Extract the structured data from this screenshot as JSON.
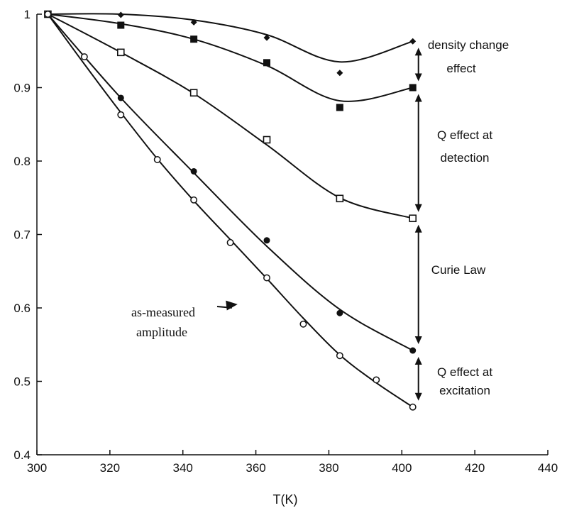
{
  "chart_data": {
    "type": "scatter",
    "title": "",
    "xlabel": "T(K)",
    "ylabel": "",
    "xlim": [
      300,
      440
    ],
    "ylim": [
      0.4,
      1.0
    ],
    "x_ticks": [
      {
        "value": 300,
        "label": "300"
      },
      {
        "value": 320,
        "label": "320"
      },
      {
        "value": 340,
        "label": "340"
      },
      {
        "value": 360,
        "label": "360"
      },
      {
        "value": 380,
        "label": "380"
      },
      {
        "value": 400,
        "label": "400"
      },
      {
        "value": 420,
        "label": "420"
      },
      {
        "value": 440,
        "label": "440"
      }
    ],
    "y_ticks": [
      {
        "value": 0.4,
        "label": "0.4"
      },
      {
        "value": 0.5,
        "label": "0.5"
      },
      {
        "value": 0.6,
        "label": "0.6"
      },
      {
        "value": 0.7,
        "label": "0.7"
      },
      {
        "value": 0.8,
        "label": "0.8"
      },
      {
        "value": 0.9,
        "label": "0.9"
      },
      {
        "value": 1.0,
        "label": "1"
      }
    ],
    "grid": false,
    "series": [
      {
        "marker": "filled-diamond",
        "points": [
          [
            303,
            1.0
          ],
          [
            323,
            0.999
          ],
          [
            343,
            0.989
          ],
          [
            363,
            0.968
          ],
          [
            383,
            0.92
          ],
          [
            403,
            0.963
          ]
        ],
        "curve": [
          [
            303,
            1.0
          ],
          [
            323,
            1.0
          ],
          [
            343,
            0.992
          ],
          [
            363,
            0.972
          ],
          [
            383,
            0.935
          ],
          [
            403,
            0.963
          ]
        ]
      },
      {
        "marker": "filled-square",
        "points": [
          [
            303,
            1.0
          ],
          [
            323,
            0.985
          ],
          [
            343,
            0.966
          ],
          [
            363,
            0.934
          ],
          [
            383,
            0.873
          ],
          [
            403,
            0.9
          ]
        ],
        "curve": [
          [
            303,
            1.0
          ],
          [
            323,
            0.987
          ],
          [
            343,
            0.966
          ],
          [
            363,
            0.93
          ],
          [
            383,
            0.882
          ],
          [
            403,
            0.9
          ]
        ]
      },
      {
        "marker": "open-square",
        "points": [
          [
            303,
            1.0
          ],
          [
            323,
            0.948
          ],
          [
            343,
            0.893
          ],
          [
            363,
            0.829
          ],
          [
            383,
            0.749
          ],
          [
            403,
            0.722
          ]
        ],
        "curve": [
          [
            303,
            1.0
          ],
          [
            323,
            0.948
          ],
          [
            343,
            0.892
          ],
          [
            363,
            0.822
          ],
          [
            383,
            0.75
          ],
          [
            403,
            0.722
          ]
        ]
      },
      {
        "marker": "filled-circle",
        "points": [
          [
            303,
            1.0
          ],
          [
            323,
            0.886
          ],
          [
            343,
            0.786
          ],
          [
            363,
            0.692
          ],
          [
            383,
            0.593
          ],
          [
            403,
            0.542
          ]
        ],
        "curve": [
          [
            303,
            1.0
          ],
          [
            323,
            0.886
          ],
          [
            343,
            0.784
          ],
          [
            363,
            0.684
          ],
          [
            383,
            0.598
          ],
          [
            403,
            0.542
          ]
        ]
      },
      {
        "marker": "open-circle",
        "points": [
          [
            303,
            1.0
          ],
          [
            313,
            0.942
          ],
          [
            323,
            0.863
          ],
          [
            333,
            0.802
          ],
          [
            343,
            0.747
          ],
          [
            353,
            0.689
          ],
          [
            363,
            0.641
          ],
          [
            373,
            0.578
          ],
          [
            383,
            0.535
          ],
          [
            393,
            0.502
          ],
          [
            403,
            0.465
          ]
        ],
        "curve": [
          [
            303,
            1.0
          ],
          [
            313,
            0.932
          ],
          [
            323,
            0.866
          ],
          [
            333,
            0.803
          ],
          [
            343,
            0.746
          ],
          [
            353,
            0.693
          ],
          [
            363,
            0.64
          ],
          [
            373,
            0.586
          ],
          [
            383,
            0.536
          ],
          [
            393,
            0.498
          ],
          [
            403,
            0.465
          ]
        ]
      }
    ],
    "annotations": {
      "density": {
        "lines": [
          "density change",
          "effect"
        ],
        "arrow": {
          "x": 403,
          "y1": 0.963,
          "y2": 0.9
        }
      },
      "q_detection": {
        "lines": [
          "Q effect at",
          "detection"
        ],
        "arrow": {
          "x": 403,
          "y1": 0.9,
          "y2": 0.722
        }
      },
      "curie": {
        "lines": [
          "Curie Law"
        ],
        "arrow": {
          "x": 403,
          "y1": 0.722,
          "y2": 0.542
        }
      },
      "q_excitation": {
        "lines": [
          "Q effect at",
          "excitation"
        ],
        "arrow": {
          "x": 403,
          "y1": 0.542,
          "y2": 0.465
        }
      },
      "measured": {
        "lines": [
          "as-measured",
          "amplitude"
        ],
        "pointer": {
          "x": 355,
          "y": 0.605
        }
      }
    }
  }
}
